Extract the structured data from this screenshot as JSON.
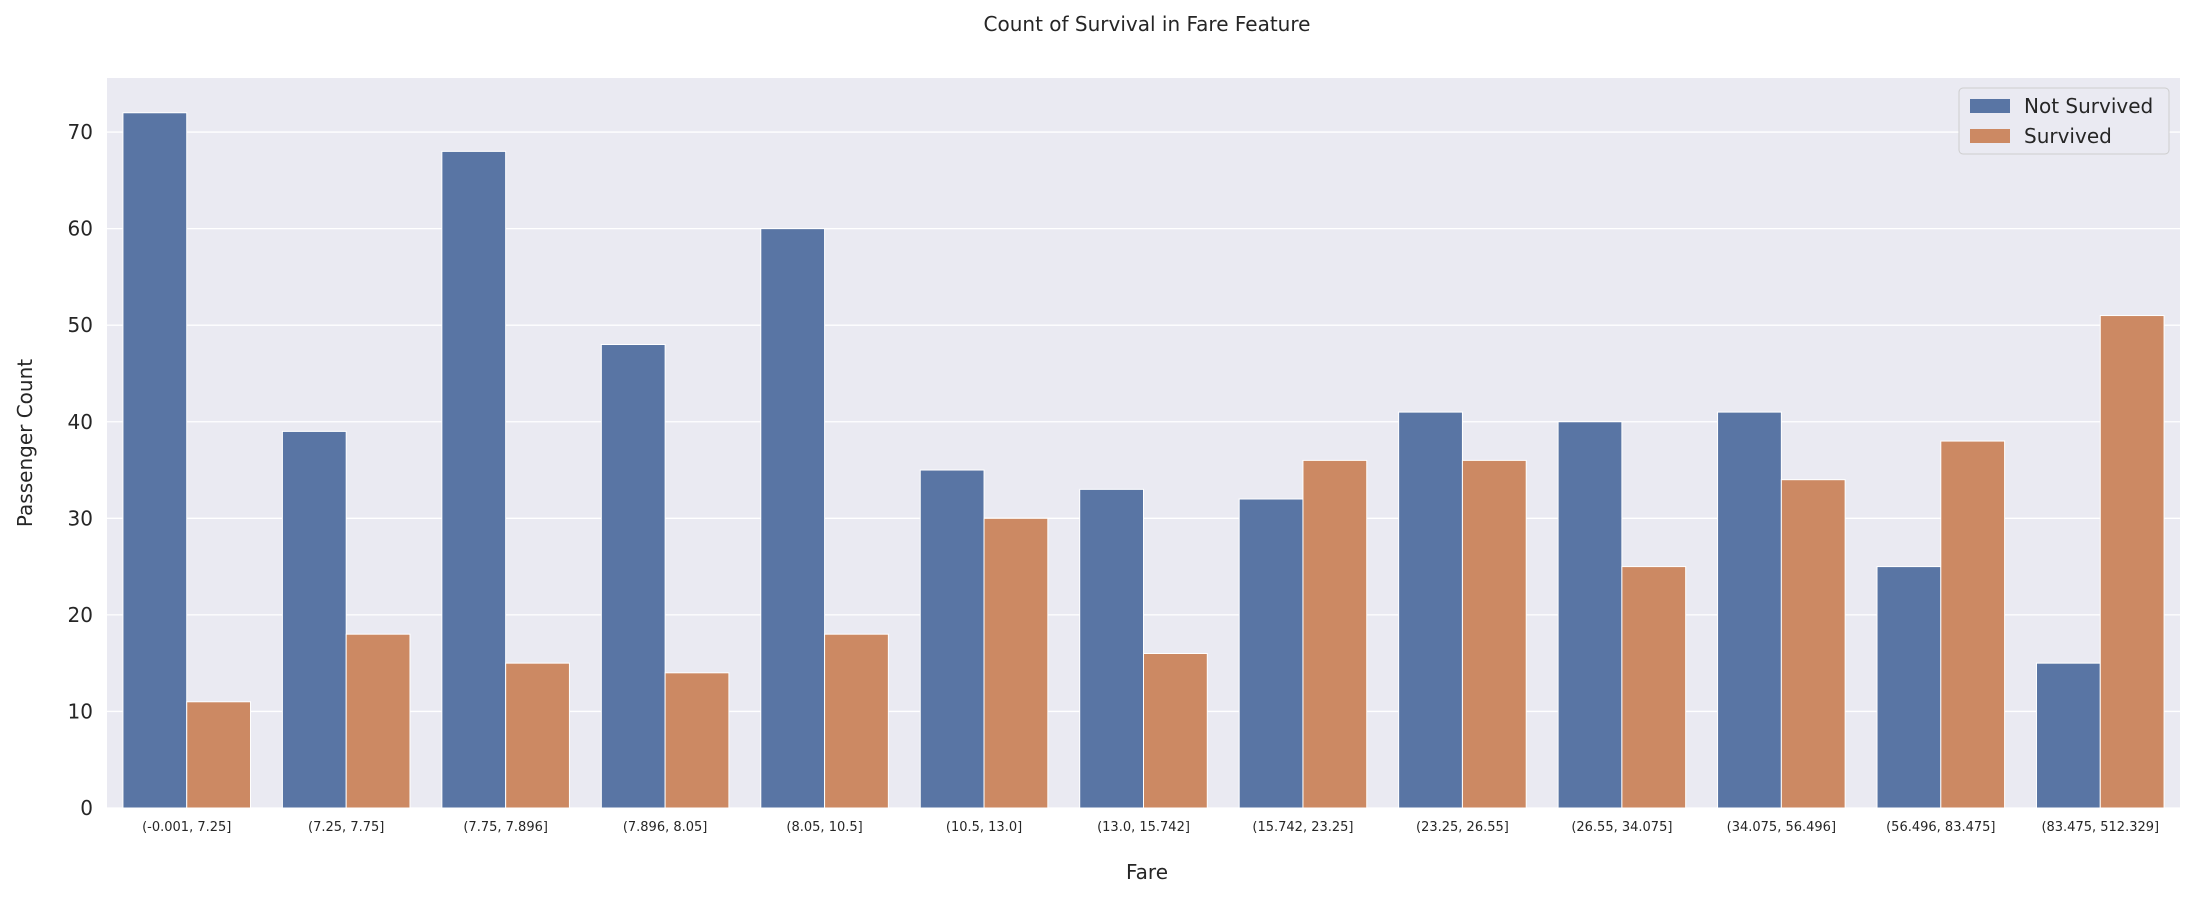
{
  "chart_data": {
    "type": "bar",
    "title": "Count of Survival in Fare Feature",
    "xlabel": "Fare",
    "ylabel": "Passenger Count",
    "categories": [
      "(-0.001, 7.25]",
      "(7.25, 7.75]",
      "(7.75, 7.896]",
      "(7.896, 8.05]",
      "(8.05, 10.5]",
      "(10.5, 13.0]",
      "(13.0, 15.742]",
      "(15.742, 23.25]",
      "(23.25, 26.55]",
      "(26.55, 34.075]",
      "(34.075, 56.496]",
      "(56.496, 83.475]",
      "(83.475, 512.329]"
    ],
    "series": [
      {
        "name": "Not Survived",
        "color": "#5975a4",
        "values": [
          72,
          39,
          68,
          48,
          60,
          35,
          33,
          32,
          41,
          40,
          41,
          25,
          15
        ]
      },
      {
        "name": "Survived",
        "color": "#cc8963",
        "values": [
          11,
          18,
          15,
          14,
          18,
          30,
          16,
          36,
          36,
          25,
          34,
          38,
          51
        ]
      }
    ],
    "ylim": [
      0,
      75.6
    ],
    "yticks": [
      0,
      10,
      20,
      30,
      40,
      50,
      60,
      70
    ],
    "grid": true,
    "legend": "top-right",
    "background": "#eaeaf2"
  }
}
